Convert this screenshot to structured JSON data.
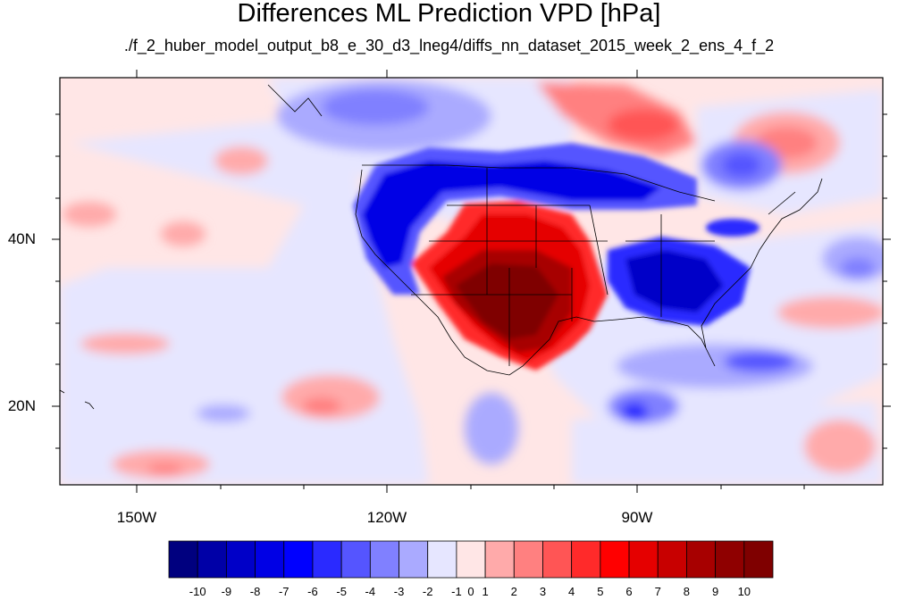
{
  "title": "Differences ML Prediction VPD [hPa]",
  "subtitle": "./f_2_huber_model_output_b8_e_30_d3_lneg4/diffs_nn_dataset_2015_week_2_ens_4_f_2",
  "map": {
    "lon_labels": [
      "150W",
      "120W",
      "90W"
    ],
    "lat_labels": [
      "40N",
      "20N"
    ]
  },
  "colorbar": {
    "labels": [
      "-10",
      "-9",
      "-8",
      "-7",
      "-6",
      "-5",
      "-4",
      "-3",
      "-2",
      "-1",
      "0",
      "1",
      "2",
      "3",
      "4",
      "5",
      "6",
      "7",
      "8",
      "9",
      "10"
    ],
    "colors": [
      "#00007f",
      "#0000a7",
      "#0000c8",
      "#0000e5",
      "#0000ff",
      "#2a2aff",
      "#5555ff",
      "#8080ff",
      "#aaaaff",
      "#e6e6ff",
      "#ffe6e6",
      "#ffaaaa",
      "#ff8080",
      "#ff5555",
      "#ff2a2a",
      "#ff0000",
      "#e50000",
      "#c80000",
      "#a70000",
      "#8f0000",
      "#7f0000"
    ]
  }
}
